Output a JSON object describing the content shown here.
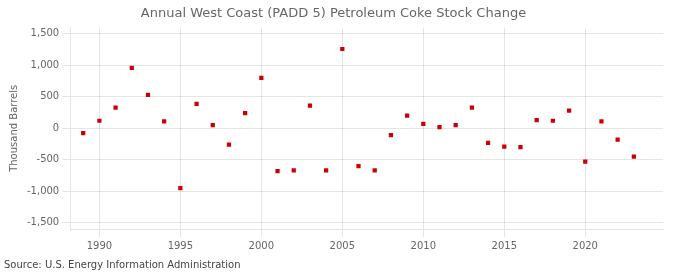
{
  "chart_data": {
    "type": "scatter",
    "title": "Annual West Coast (PADD 5) Petroleum Coke Stock Change",
    "ylabel": "Thousand Barrels",
    "source": "Source: U.S. Energy Information Administration",
    "x": [
      1989,
      1990,
      1991,
      1992,
      1993,
      1994,
      1995,
      1996,
      1997,
      1998,
      1999,
      2000,
      2001,
      2002,
      2003,
      2004,
      2005,
      2006,
      2007,
      2008,
      2009,
      2010,
      2011,
      2012,
      2013,
      2014,
      2015,
      2016,
      2017,
      2018,
      2019,
      2020,
      2021,
      2022,
      2023
    ],
    "values": [
      -75,
      120,
      330,
      960,
      530,
      110,
      -950,
      390,
      50,
      -260,
      240,
      800,
      -680,
      -670,
      360,
      -670,
      1260,
      -600,
      -670,
      -110,
      200,
      70,
      20,
      50,
      330,
      -230,
      -290,
      -300,
      130,
      120,
      280,
      -530,
      110,
      -180,
      -450
    ],
    "color": "#cc0000",
    "marker": "square",
    "grid": true,
    "xlim": [
      1988.2,
      2024.8
    ],
    "xticks": [
      1990,
      1995,
      2000,
      2005,
      2010,
      2015,
      2020
    ],
    "ylim": [
      -1600,
      1600
    ],
    "yticks": [
      {
        "value": -1500,
        "label": "-1,500"
      },
      {
        "value": -1000,
        "label": "-1,000"
      },
      -500,
      0,
      500,
      {
        "value": 1000,
        "label": "1,000"
      },
      {
        "value": 1500,
        "label": "1,500"
      }
    ]
  }
}
